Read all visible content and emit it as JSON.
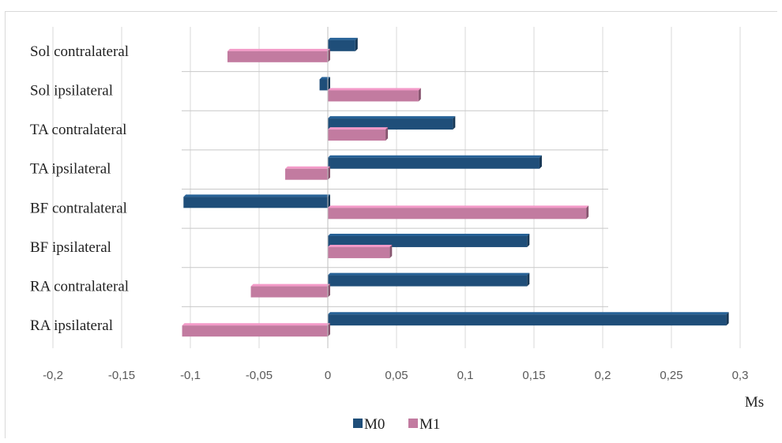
{
  "chart_data": {
    "type": "bar",
    "orientation": "horizontal",
    "categories": [
      "Sol contralateral",
      "Sol ipsilateral",
      "TA contralateral",
      "TA ipsilateral",
      "BF contralateral",
      "BF ipsilateral",
      "RA contralateral",
      "RA ipsilateral"
    ],
    "series": [
      {
        "name": "M0",
        "color": "#1f4e79",
        "values": [
          0.02,
          -0.006,
          0.091,
          0.154,
          -0.105,
          0.145,
          0.145,
          0.29
        ]
      },
      {
        "name": "M1",
        "color": "#c27ba0",
        "values": [
          -0.073,
          0.066,
          0.042,
          -0.031,
          0.188,
          0.045,
          -0.056,
          -0.106
        ]
      }
    ],
    "xlim": [
      -0.2,
      0.3
    ],
    "xticks": [
      "-0,2",
      "-0,15",
      "-0,1",
      "-0,05",
      "0",
      "0,05",
      "0,1",
      "0,15",
      "0,2",
      "0,25",
      "0,3"
    ],
    "xtick_values": [
      -0.2,
      -0.15,
      -0.1,
      -0.05,
      0,
      0.05,
      0.1,
      0.15,
      0.2,
      0.25,
      0.3
    ],
    "xlabel": "Ms",
    "grid": true,
    "legend_position": "bottom"
  }
}
